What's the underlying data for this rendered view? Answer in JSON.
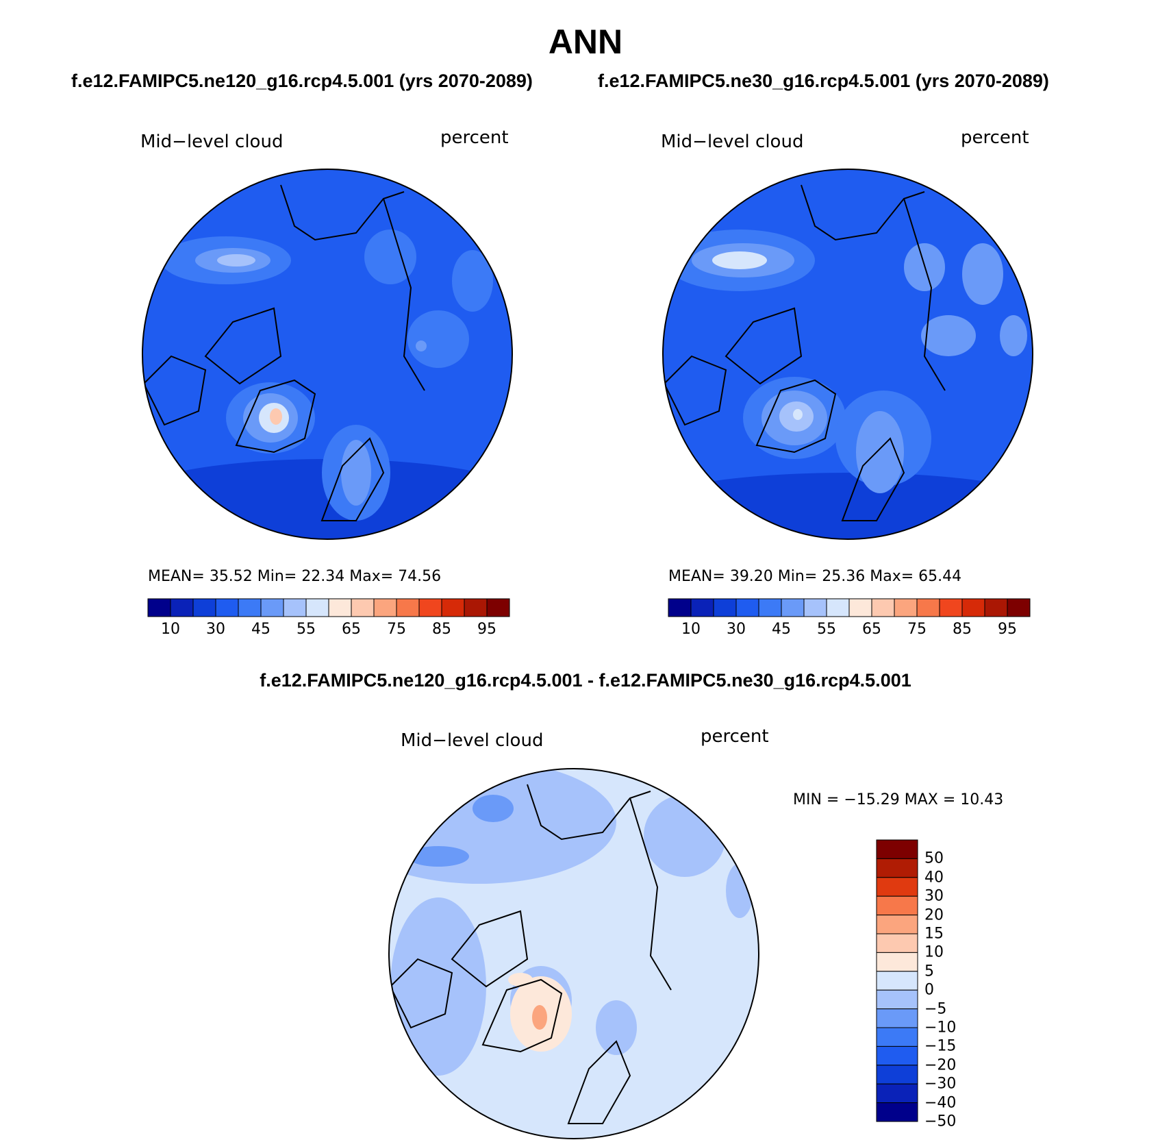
{
  "title": "ANN",
  "subtitle_left": "f.e12.FAMIPC5.ne120_g16.rcp4.5.001 (yrs 2070-2089)",
  "subtitle_right": "f.e12.FAMIPC5.ne30_g16.rcp4.5.001 (yrs 2070-2089)",
  "panels": [
    {
      "variable": "Mid−level cloud",
      "units": "percent",
      "stats_label": "MEAN=   35.52   Min=   22.34   Max=   74.56",
      "mean": 35.52,
      "min": 22.34,
      "max": 74.56
    },
    {
      "variable": "Mid−level cloud",
      "units": "percent",
      "stats_label": "MEAN=   39.20   Min=   25.36   Max=   65.44",
      "mean": 39.2,
      "min": 25.36,
      "max": 65.44
    }
  ],
  "colorbar": {
    "labels": [
      "10",
      "30",
      "45",
      "55",
      "65",
      "75",
      "85",
      "95"
    ],
    "colors": [
      "#00008b",
      "#0a22b8",
      "#0e3fd8",
      "#1f5cf0",
      "#3c7af6",
      "#6a9af8",
      "#a6c2fb",
      "#d6e6fc",
      "#fde8da",
      "#fdc9b0",
      "#fba57e",
      "#f7784a",
      "#f0461e",
      "#d62a08",
      "#aa1704",
      "#7d0000"
    ]
  },
  "difference": {
    "title": "f.e12.FAMIPC5.ne120_g16.rcp4.5.001 - f.e12.FAMIPC5.ne30_g16.rcp4.5.001",
    "variable": "Mid−level cloud",
    "units": "percent",
    "minmax_label": "MIN = −15.29 MAX =   10.43",
    "min": -15.29,
    "max": 10.43,
    "colorbar_labels": [
      "50",
      "40",
      "30",
      "20",
      "15",
      "10",
      "5",
      "0",
      "−5",
      "−10",
      "−15",
      "−20",
      "−30",
      "−40",
      "−50"
    ],
    "colorbar_colors": [
      "#7d0000",
      "#b01c04",
      "#e03a10",
      "#f7784a",
      "#fba57e",
      "#fdc9b0",
      "#fde8da",
      "#d6e6fc",
      "#a6c2fb",
      "#6a9af8",
      "#3c7af6",
      "#1f5cf0",
      "#0e3fd8",
      "#0a22b8",
      "#00008b"
    ]
  },
  "colors": {
    "background": "#ffffff",
    "text": "#000000"
  }
}
